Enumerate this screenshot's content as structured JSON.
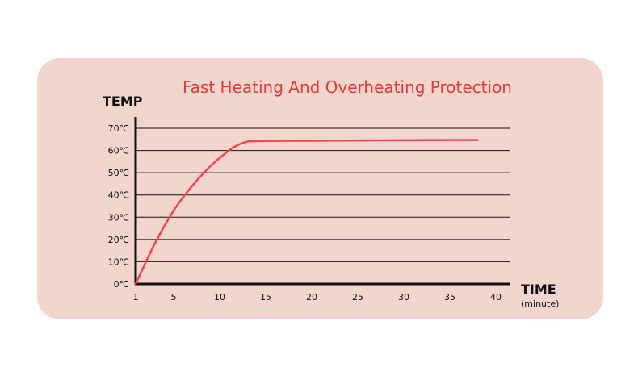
{
  "chart_data": {
    "type": "line",
    "title": "Fast Heating And Overheating Protection",
    "ylabel": "TEMP",
    "xlabel": "TIME",
    "xunit": "(minute)",
    "x_ticks": [
      "1",
      "5",
      "10",
      "15",
      "20",
      "25",
      "30",
      "35",
      "40"
    ],
    "y_ticks": [
      "0℃",
      "10℃",
      "20℃",
      "30℃",
      "40℃",
      "50℃",
      "60℃",
      "70℃"
    ],
    "ylim": [
      0,
      70
    ],
    "grid": true,
    "series": [
      {
        "x": [
          1,
          3,
          5,
          7,
          9,
          11,
          12,
          13,
          14,
          15,
          20,
          25,
          30,
          35,
          38
        ],
        "values": [
          0,
          18,
          33,
          44,
          53,
          60,
          62.5,
          64,
          64.2,
          64.3,
          64.4,
          64.5,
          64.6,
          64.7,
          64.7
        ]
      }
    ]
  },
  "colors": {
    "background": "#f2d5cc",
    "title": "#e63a3a",
    "line": "#f04848",
    "grid": "#111111"
  }
}
